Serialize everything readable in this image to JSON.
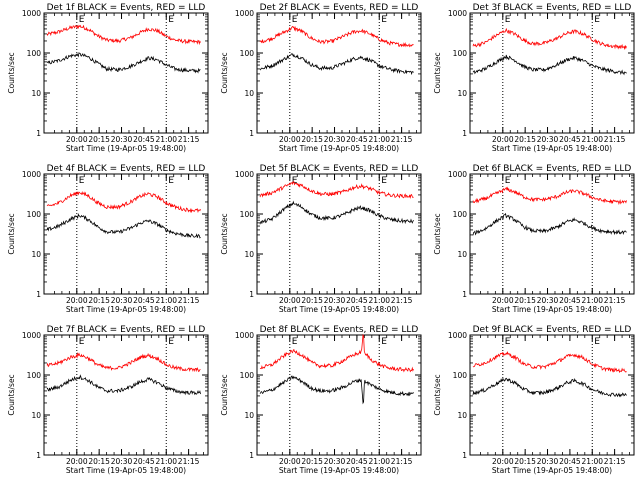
{
  "chart_data": [
    {
      "type": "line",
      "title": "Det 1f BLACK = Events, RED = LLD",
      "xlabel": "Start Time (19-Apr-05 19:48:00)",
      "ylabel": "Counts/sec",
      "yscale": "log",
      "ylim": [
        1,
        1000
      ],
      "xlim": [
        -10,
        100
      ],
      "xticks": [
        "20:00",
        "20:15",
        "20:30",
        "20:45",
        "21:00",
        "21:15"
      ],
      "xtick_values": [
        12,
        27,
        42,
        57,
        72,
        87
      ],
      "yticks": [
        "1",
        "10",
        "100",
        "1000"
      ],
      "markers": [
        {
          "label": "E",
          "x": 12
        },
        {
          "label": "E",
          "x": 72
        }
      ],
      "series": [
        {
          "name": "RED = LLD",
          "color": "#ff0000",
          "x": [
            -8,
            0,
            8,
            14,
            20,
            26,
            32,
            40,
            48,
            55,
            60,
            66,
            72,
            78,
            84,
            90,
            95
          ],
          "y": [
            290,
            340,
            430,
            470,
            390,
            270,
            210,
            200,
            240,
            330,
            400,
            360,
            260,
            210,
            195,
            190,
            190
          ]
        },
        {
          "name": "BLACK = Events",
          "color": "#000000",
          "x": [
            -8,
            0,
            8,
            14,
            20,
            26,
            32,
            40,
            48,
            55,
            60,
            66,
            72,
            78,
            84,
            90,
            95
          ],
          "y": [
            55,
            65,
            85,
            92,
            78,
            55,
            40,
            38,
            46,
            62,
            75,
            68,
            50,
            40,
            37,
            36,
            36
          ]
        }
      ]
    },
    {
      "type": "line",
      "title": "Det 2f BLACK = Events, RED = LLD",
      "xlabel": "Start Time (19-Apr-05 19:48:00)",
      "ylabel": "Counts/sec",
      "yscale": "log",
      "ylim": [
        1,
        1000
      ],
      "xlim": [
        -10,
        100
      ],
      "xticks": [
        "20:00",
        "20:15",
        "20:30",
        "20:45",
        "21:00",
        "21:15"
      ],
      "xtick_values": [
        12,
        27,
        42,
        57,
        72,
        87
      ],
      "yticks": [
        "1",
        "10",
        "100",
        "1000"
      ],
      "markers": [
        {
          "label": "E",
          "x": 12
        },
        {
          "label": "E",
          "x": 72
        }
      ],
      "series": [
        {
          "name": "RED = LLD",
          "color": "#ff0000",
          "x": [
            -8,
            0,
            8,
            14,
            20,
            26,
            32,
            40,
            48,
            55,
            60,
            66,
            72,
            78,
            84,
            90,
            95
          ],
          "y": [
            190,
            230,
            330,
            430,
            350,
            240,
            190,
            195,
            260,
            340,
            360,
            300,
            220,
            180,
            165,
            160,
            158
          ]
        },
        {
          "name": "BLACK = Events",
          "color": "#000000",
          "x": [
            -8,
            0,
            8,
            14,
            20,
            26,
            32,
            40,
            48,
            55,
            60,
            66,
            72,
            78,
            84,
            90,
            95
          ],
          "y": [
            40,
            48,
            70,
            92,
            75,
            52,
            42,
            42,
            55,
            72,
            78,
            65,
            48,
            40,
            36,
            34,
            33
          ]
        }
      ]
    },
    {
      "type": "line",
      "title": "Det 3f BLACK = Events, RED = LLD",
      "xlabel": "Start Time (19-Apr-05 19:48:00)",
      "ylabel": "Counts/sec",
      "yscale": "log",
      "ylim": [
        1,
        1000
      ],
      "xlim": [
        -10,
        100
      ],
      "xticks": [
        "20:00",
        "20:15",
        "20:30",
        "20:45",
        "21:00",
        "21:15"
      ],
      "xtick_values": [
        12,
        27,
        42,
        57,
        72,
        87
      ],
      "yticks": [
        "1",
        "10",
        "100",
        "1000"
      ],
      "markers": [
        {
          "label": "E",
          "x": 12
        },
        {
          "label": "E",
          "x": 72
        }
      ],
      "series": [
        {
          "name": "RED = LLD",
          "color": "#ff0000",
          "x": [
            -8,
            0,
            8,
            14,
            20,
            26,
            32,
            40,
            48,
            55,
            60,
            66,
            72,
            78,
            84,
            90,
            95
          ],
          "y": [
            150,
            180,
            280,
            370,
            300,
            210,
            170,
            175,
            230,
            310,
            350,
            300,
            220,
            170,
            150,
            145,
            140
          ]
        },
        {
          "name": "BLACK = Events",
          "color": "#000000",
          "x": [
            -8,
            0,
            8,
            14,
            20,
            26,
            32,
            40,
            48,
            55,
            60,
            66,
            72,
            78,
            84,
            90,
            95
          ],
          "y": [
            32,
            40,
            60,
            82,
            66,
            46,
            38,
            38,
            50,
            68,
            76,
            64,
            48,
            40,
            36,
            33,
            32
          ]
        }
      ]
    },
    {
      "type": "line",
      "title": "Det 4f BLACK = Events, RED = LLD",
      "xlabel": "Start Time (19-Apr-05 19:48:00)",
      "ylabel": "Counts/sec",
      "yscale": "log",
      "ylim": [
        1,
        1000
      ],
      "xlim": [
        -10,
        100
      ],
      "xticks": [
        "20:00",
        "20:15",
        "20:30",
        "20:45",
        "21:00",
        "21:15"
      ],
      "xtick_values": [
        12,
        27,
        42,
        57,
        72,
        87
      ],
      "yticks": [
        "1",
        "10",
        "100",
        "1000"
      ],
      "markers": [
        {
          "label": "E",
          "x": 12
        },
        {
          "label": "E",
          "x": 72
        }
      ],
      "series": [
        {
          "name": "RED = LLD",
          "color": "#ff0000",
          "x": [
            -8,
            0,
            8,
            14,
            20,
            26,
            32,
            40,
            48,
            55,
            60,
            66,
            72,
            78,
            84,
            90,
            95
          ],
          "y": [
            150,
            190,
            290,
            350,
            280,
            190,
            150,
            150,
            200,
            280,
            320,
            270,
            190,
            150,
            130,
            125,
            120
          ]
        },
        {
          "name": "BLACK = Events",
          "color": "#000000",
          "x": [
            -8,
            0,
            8,
            14,
            20,
            26,
            32,
            40,
            48,
            55,
            60,
            66,
            72,
            78,
            84,
            90,
            95
          ],
          "y": [
            40,
            50,
            75,
            92,
            72,
            48,
            36,
            35,
            44,
            60,
            68,
            56,
            40,
            33,
            30,
            28,
            28
          ]
        }
      ]
    },
    {
      "type": "line",
      "title": "Det 5f BLACK = Events, RED = LLD",
      "xlabel": "Start Time (19-Apr-05 19:48:00)",
      "ylabel": "Counts/sec",
      "yscale": "log",
      "ylim": [
        1,
        1000
      ],
      "xlim": [
        -10,
        100
      ],
      "xticks": [
        "20:00",
        "20:15",
        "20:30",
        "20:45",
        "21:00",
        "21:15"
      ],
      "xtick_values": [
        12,
        27,
        42,
        57,
        72,
        87
      ],
      "yticks": [
        "1",
        "10",
        "100",
        "1000"
      ],
      "markers": [
        {
          "label": "E",
          "x": 12
        },
        {
          "label": "E",
          "x": 72
        }
      ],
      "series": [
        {
          "name": "RED = LLD",
          "color": "#ff0000",
          "x": [
            -8,
            0,
            8,
            14,
            20,
            26,
            32,
            40,
            48,
            55,
            60,
            66,
            72,
            78,
            84,
            90,
            95
          ],
          "y": [
            290,
            340,
            470,
            600,
            520,
            390,
            320,
            310,
            360,
            460,
            500,
            430,
            340,
            300,
            285,
            280,
            280
          ]
        },
        {
          "name": "BLACK = Events",
          "color": "#000000",
          "x": [
            -8,
            0,
            8,
            14,
            20,
            26,
            32,
            40,
            48,
            55,
            60,
            66,
            72,
            78,
            84,
            90,
            95
          ],
          "y": [
            60,
            75,
            130,
            185,
            150,
            100,
            80,
            78,
            95,
            130,
            145,
            120,
            90,
            75,
            68,
            66,
            65
          ]
        }
      ]
    },
    {
      "type": "line",
      "title": "Det 6f BLACK = Events, RED = LLD",
      "xlabel": "Start Time (19-Apr-05 19:48:00)",
      "ylabel": "Counts/sec",
      "yscale": "log",
      "ylim": [
        1,
        1000
      ],
      "xlim": [
        -10,
        100
      ],
      "xticks": [
        "20:00",
        "20:15",
        "20:30",
        "20:45",
        "21:00",
        "21:15"
      ],
      "xtick_values": [
        12,
        27,
        42,
        57,
        72,
        87
      ],
      "yticks": [
        "1",
        "10",
        "100",
        "1000"
      ],
      "markers": [
        {
          "label": "E",
          "x": 12
        },
        {
          "label": "E",
          "x": 72
        }
      ],
      "series": [
        {
          "name": "RED = LLD",
          "color": "#ff0000",
          "x": [
            -8,
            0,
            8,
            14,
            20,
            26,
            32,
            40,
            48,
            55,
            60,
            66,
            72,
            78,
            84,
            90,
            95
          ],
          "y": [
            200,
            240,
            330,
            420,
            360,
            270,
            230,
            230,
            270,
            350,
            380,
            330,
            260,
            220,
            205,
            200,
            200
          ]
        },
        {
          "name": "BLACK = Events",
          "color": "#000000",
          "x": [
            -8,
            0,
            8,
            14,
            20,
            26,
            32,
            40,
            48,
            55,
            60,
            66,
            72,
            78,
            84,
            90,
            95
          ],
          "y": [
            32,
            42,
            68,
            92,
            72,
            48,
            38,
            37,
            46,
            64,
            72,
            60,
            45,
            38,
            36,
            35,
            35
          ]
        }
      ]
    },
    {
      "type": "line",
      "title": "Det 7f BLACK = Events, RED = LLD",
      "xlabel": "Start Time (19-Apr-05 19:48:00)",
      "ylabel": "Counts/sec",
      "yscale": "log",
      "ylim": [
        1,
        1000
      ],
      "xlim": [
        -10,
        100
      ],
      "xticks": [
        "20:00",
        "20:15",
        "20:30",
        "20:45",
        "21:00",
        "21:15"
      ],
      "xtick_values": [
        12,
        27,
        42,
        57,
        72,
        87
      ],
      "yticks": [
        "1",
        "10",
        "100",
        "1000"
      ],
      "markers": [
        {
          "label": "E",
          "x": 12
        },
        {
          "label": "E",
          "x": 72
        }
      ],
      "series": [
        {
          "name": "RED = LLD",
          "color": "#ff0000",
          "x": [
            -8,
            0,
            8,
            14,
            20,
            26,
            32,
            40,
            48,
            55,
            60,
            66,
            72,
            78,
            84,
            90,
            95
          ],
          "y": [
            170,
            200,
            280,
            320,
            260,
            180,
            150,
            150,
            200,
            280,
            310,
            260,
            180,
            150,
            140,
            135,
            135
          ]
        },
        {
          "name": "BLACK = Events",
          "color": "#000000",
          "x": [
            -8,
            0,
            8,
            14,
            20,
            26,
            32,
            40,
            48,
            55,
            60,
            66,
            72,
            78,
            84,
            90,
            95
          ],
          "y": [
            42,
            50,
            75,
            90,
            72,
            50,
            40,
            40,
            50,
            68,
            78,
            65,
            48,
            40,
            37,
            36,
            36
          ]
        }
      ]
    },
    {
      "type": "line",
      "title": "Det 8f BLACK = Events, RED = LLD",
      "xlabel": "Start Time (19-Apr-05 19:48:00)",
      "ylabel": "Counts/sec",
      "yscale": "log",
      "ylim": [
        1,
        1000
      ],
      "xlim": [
        -10,
        100
      ],
      "xticks": [
        "20:00",
        "20:15",
        "20:30",
        "20:45",
        "21:00",
        "21:15"
      ],
      "xtick_values": [
        12,
        27,
        42,
        57,
        72,
        87
      ],
      "yticks": [
        "1",
        "10",
        "100",
        "1000"
      ],
      "markers": [
        {
          "label": "E",
          "x": 12
        },
        {
          "label": "E",
          "x": 72
        }
      ],
      "series": [
        {
          "name": "RED = LLD",
          "color": "#ff0000",
          "x": [
            -8,
            0,
            8,
            14,
            20,
            26,
            32,
            40,
            48,
            55,
            60,
            61,
            61.5,
            62,
            64,
            66,
            72,
            78,
            84,
            90,
            95
          ],
          "y": [
            150,
            180,
            300,
            400,
            320,
            210,
            170,
            170,
            230,
            320,
            370,
            1000,
            1000,
            330,
            310,
            250,
            180,
            150,
            140,
            135,
            135
          ]
        },
        {
          "name": "BLACK = Events",
          "color": "#000000",
          "x": [
            -8,
            0,
            8,
            14,
            20,
            26,
            32,
            40,
            48,
            55,
            60,
            61,
            61.5,
            62,
            64,
            66,
            72,
            78,
            84,
            90,
            95
          ],
          "y": [
            35,
            42,
            65,
            90,
            70,
            48,
            40,
            40,
            50,
            68,
            76,
            20,
            20,
            70,
            65,
            58,
            45,
            38,
            35,
            34,
            34
          ]
        }
      ]
    },
    {
      "type": "line",
      "title": "Det 9f BLACK = Events, RED = LLD",
      "xlabel": "Start Time (19-Apr-05 19:48:00)",
      "ylabel": "Counts/sec",
      "yscale": "log",
      "ylim": [
        1,
        1000
      ],
      "xlim": [
        -10,
        100
      ],
      "xticks": [
        "20:00",
        "20:15",
        "20:30",
        "20:45",
        "21:00",
        "21:15"
      ],
      "xtick_values": [
        12,
        27,
        42,
        57,
        72,
        87
      ],
      "yticks": [
        "1",
        "10",
        "100",
        "1000"
      ],
      "markers": [
        {
          "label": "E",
          "x": 12
        },
        {
          "label": "E",
          "x": 72
        }
      ],
      "series": [
        {
          "name": "RED = LLD",
          "color": "#ff0000",
          "x": [
            -8,
            0,
            8,
            14,
            20,
            26,
            32,
            40,
            48,
            55,
            60,
            66,
            72,
            78,
            84,
            90,
            95
          ],
          "y": [
            170,
            200,
            290,
            350,
            280,
            190,
            160,
            160,
            210,
            290,
            320,
            270,
            190,
            150,
            135,
            130,
            130
          ]
        },
        {
          "name": "BLACK = Events",
          "color": "#000000",
          "x": [
            -8,
            0,
            8,
            14,
            20,
            26,
            32,
            40,
            48,
            55,
            60,
            66,
            72,
            78,
            84,
            90,
            95
          ],
          "y": [
            35,
            42,
            62,
            80,
            64,
            44,
            36,
            36,
            46,
            64,
            72,
            60,
            44,
            36,
            33,
            32,
            32
          ]
        }
      ]
    }
  ]
}
